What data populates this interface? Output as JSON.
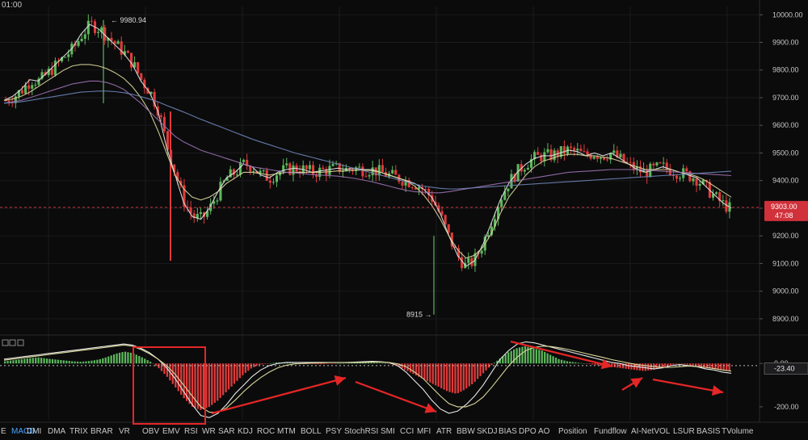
{
  "header": {
    "time_label": "01:00"
  },
  "colors": {
    "background": "#0b0b0c",
    "up": "#5cb85c",
    "down": "#e03b3b",
    "grid": "#1b1b1d",
    "ma_white": "#e8e8e8",
    "ma_yellow": "#d9d89a",
    "ma_purple": "#9d72b0",
    "ma_blue": "#6f86b8",
    "price_line": "#c8333a",
    "arrow": "#e52626",
    "active_tab": "#4aa3ff"
  },
  "chart_data": [
    {
      "type": "line",
      "title": "",
      "y_axis": {
        "ticks": [
          "10000.00",
          "9900.00",
          "9800.00",
          "9700.00",
          "9600.00",
          "9500.00",
          "9400.00",
          "9300.00",
          "9200.00",
          "9100.00",
          "9000.00",
          "8900.00"
        ],
        "range": [
          8850,
          10030
        ]
      },
      "annotations": {
        "high": "9980.94",
        "low": "8915",
        "current_price": "9303.00",
        "countdown": "47:08"
      },
      "series": [
        {
          "values": [
            9690,
            9705,
            9730,
            9765,
            9760,
            9790,
            9820,
            9850,
            9880,
            9930,
            9965,
            9950,
            9920,
            9890,
            9860,
            9820,
            9760,
            9720,
            9650,
            9520,
            9420,
            9320,
            9270,
            9260,
            9300,
            9360,
            9410,
            9430,
            9460,
            9450,
            9420,
            9410,
            9430,
            9440,
            9445,
            9440,
            9430,
            9435,
            9440,
            9445,
            9440,
            9445,
            9440,
            9440,
            9430,
            9420,
            9410,
            9400,
            9390,
            9370,
            9340,
            9280,
            9200,
            9130,
            9090,
            9110,
            9170,
            9250,
            9330,
            9390,
            9430,
            9460,
            9480,
            9490,
            9490,
            9500,
            9510,
            9505,
            9490,
            9500,
            9490,
            9500,
            9480,
            9460,
            9440,
            9430,
            9440,
            9450,
            9440,
            9430,
            9420,
            9410,
            9380,
            9350,
            9320,
            9300
          ]
        },
        {
          "values": [
            9690,
            9695,
            9705,
            9720,
            9740,
            9760,
            9780,
            9800,
            9815,
            9820,
            9820,
            9815,
            9805,
            9790,
            9770,
            9740,
            9700,
            9650,
            9580,
            9500,
            9420,
            9370,
            9340,
            9330,
            9340,
            9360,
            9390,
            9410,
            9430,
            9430,
            9425,
            9420,
            9425,
            9430,
            9430,
            9430,
            9430,
            9430,
            9432,
            9435,
            9435,
            9438,
            9438,
            9436,
            9430,
            9420,
            9410,
            9400,
            9380,
            9350,
            9310,
            9260,
            9200,
            9150,
            9120,
            9130,
            9160,
            9210,
            9280,
            9340,
            9380,
            9420,
            9450,
            9470,
            9480,
            9490,
            9495,
            9495,
            9490,
            9490,
            9485,
            9480,
            9470,
            9460,
            9450,
            9440,
            9440,
            9440,
            9440,
            9430,
            9425,
            9415,
            9400,
            9380,
            9360,
            9340
          ]
        },
        {
          "values": [
            9680,
            9685,
            9690,
            9700,
            9710,
            9720,
            9730,
            9740,
            9750,
            9755,
            9760,
            9760,
            9755,
            9745,
            9730,
            9705,
            9680,
            9650,
            9620,
            9590,
            9560,
            9540,
            9525,
            9510,
            9500,
            9490,
            9480,
            9470,
            9460,
            9450,
            9445,
            9440,
            9435,
            9430,
            9428,
            9425,
            9422,
            9420,
            9418,
            9416,
            9412,
            9408,
            9402,
            9396,
            9388,
            9380,
            9372,
            9365,
            9360,
            9358,
            9356,
            9356,
            9360,
            9365,
            9370,
            9375,
            9380,
            9385,
            9390,
            9395,
            9400,
            9405,
            9410,
            9415,
            9420,
            9425,
            9430,
            9432,
            9434,
            9436,
            9438,
            9440,
            9440,
            9440,
            9440,
            9438,
            9436,
            9434,
            9432,
            9430,
            9428,
            9426,
            9424,
            9422,
            9420,
            9418
          ]
        },
        {
          "values": [
            9680,
            9682,
            9685,
            9690,
            9695,
            9700,
            9705,
            9710,
            9715,
            9720,
            9722,
            9724,
            9724,
            9722,
            9718,
            9712,
            9704,
            9695,
            9685,
            9672,
            9660,
            9648,
            9635,
            9622,
            9610,
            9598,
            9586,
            9574,
            9562,
            9550,
            9540,
            9530,
            9520,
            9510,
            9500,
            9492,
            9484,
            9476,
            9468,
            9460,
            9452,
            9444,
            9436,
            9428,
            9420,
            9412,
            9404,
            9396,
            9388,
            9380,
            9376,
            9372,
            9370,
            9370,
            9372,
            9374,
            9376,
            9378,
            9380,
            9382,
            9384,
            9386,
            9388,
            9390,
            9392,
            9394,
            9396,
            9398,
            9400,
            9402,
            9404,
            9406,
            9408,
            9410,
            9412,
            9414,
            9416,
            9418,
            9420,
            9422,
            9424,
            9426,
            9428,
            9430,
            9432,
            9434
          ]
        }
      ]
    },
    {
      "type": "bar",
      "title": "",
      "y_axis": {
        "ticks": [
          "0.00",
          "-200.00"
        ],
        "range": [
          -260,
          120
        ]
      },
      "annotations": {
        "current_value": "-23.40"
      },
      "series": [
        {
          "values": [
            10,
            15,
            20,
            25,
            28,
            22,
            18,
            14,
            10,
            8,
            12,
            18,
            30,
            45,
            55,
            48,
            30,
            10,
            -20,
            -60,
            -110,
            -160,
            -200,
            -215,
            -200,
            -170,
            -130,
            -90,
            -50,
            -20,
            -5,
            0,
            5,
            4,
            2,
            0,
            -2,
            -4,
            -2,
            0,
            2,
            4,
            6,
            4,
            2,
            0,
            -10,
            -30,
            -50,
            -70,
            -90,
            -110,
            -130,
            -140,
            -120,
            -90,
            -50,
            -10,
            20,
            50,
            70,
            80,
            70,
            60,
            40,
            20,
            10,
            5,
            0,
            -5,
            -10,
            -15,
            -20,
            -25,
            -30,
            -35,
            -30,
            -20,
            -10,
            0,
            -5,
            -15,
            -20,
            -25,
            -30,
            -35
          ]
        },
        {
          "values": [
            20,
            25,
            30,
            35,
            40,
            45,
            50,
            55,
            60,
            65,
            70,
            75,
            80,
            85,
            90,
            85,
            70,
            50,
            20,
            -20,
            -70,
            -130,
            -190,
            -240,
            -250,
            -230,
            -190,
            -140,
            -100,
            -60,
            -30,
            -10,
            0,
            5,
            5,
            5,
            5,
            5,
            5,
            5,
            5,
            6,
            8,
            10,
            8,
            4,
            -10,
            -40,
            -80,
            -120,
            -170,
            -210,
            -230,
            -220,
            -190,
            -150,
            -100,
            -40,
            20,
            60,
            90,
            100,
            95,
            85,
            75,
            65,
            55,
            45,
            35,
            25,
            15,
            5,
            0,
            -10,
            -15,
            -20,
            -25,
            -20,
            -10,
            -5,
            -10,
            -15,
            -25,
            -30,
            -40,
            -45
          ]
        },
        {
          "values": [
            15,
            20,
            25,
            30,
            35,
            40,
            45,
            50,
            55,
            60,
            65,
            70,
            75,
            80,
            85,
            80,
            65,
            45,
            20,
            -10,
            -50,
            -100,
            -150,
            -200,
            -225,
            -225,
            -205,
            -170,
            -130,
            -95,
            -65,
            -40,
            -20,
            -8,
            -2,
            0,
            2,
            3,
            4,
            4,
            4,
            4,
            5,
            6,
            6,
            5,
            -2,
            -15,
            -40,
            -70,
            -110,
            -150,
            -185,
            -200,
            -200,
            -185,
            -155,
            -110,
            -60,
            -10,
            30,
            60,
            75,
            80,
            78,
            72,
            64,
            55,
            46,
            37,
            28,
            18,
            10,
            2,
            -5,
            -10,
            -15,
            -18,
            -18,
            -15,
            -12,
            -14,
            -18,
            -23,
            -30,
            -35
          ]
        }
      ]
    }
  ],
  "indicator_tabs": [
    "MACD",
    "DMI",
    "DMA",
    "TRIX",
    "BRAR",
    "VR",
    "OBV",
    "EMV",
    "RSI",
    "WR",
    "SAR",
    "KDJ",
    "ROC",
    "MTM",
    "BOLL",
    "PSY",
    "StochRSI",
    "SMI",
    "CCI",
    "MFI",
    "ATR",
    "BBW",
    "SKDJ",
    "BIAS",
    "DPO",
    "AO",
    "Position",
    "Fundflow",
    "AI-NetVOL",
    "LSUR",
    "BASIS",
    "TVolume"
  ],
  "active_tab": "MACD"
}
